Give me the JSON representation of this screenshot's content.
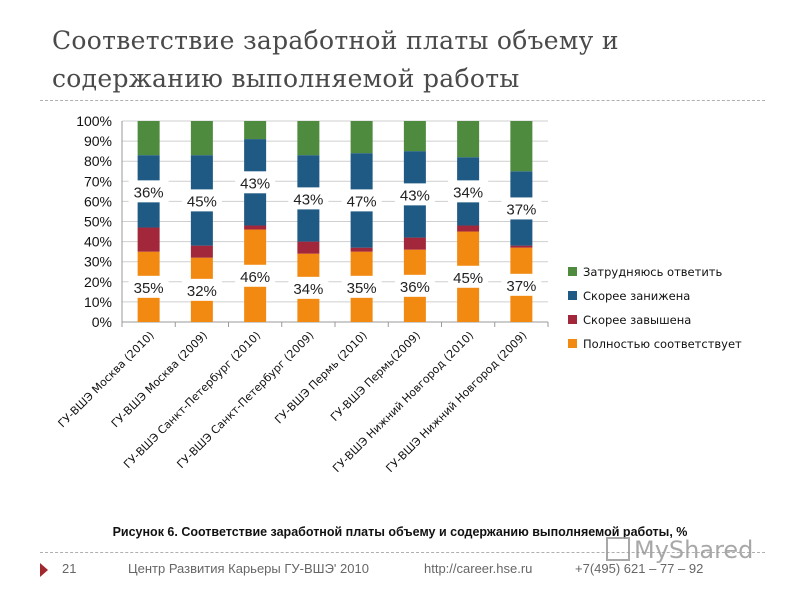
{
  "slide": {
    "title": "Соответствие заработной платы объему и содержанию выполняемой работы",
    "caption": "Рисунок 6. Соответствие заработной платы объему и содержанию выполняемой работы, %",
    "footer": {
      "page_number": "21",
      "organization": "Центр Развития Карьеры ГУ-ВШЭ' 2010",
      "url": "http://career.hse.ru",
      "phone": "+7(495) 621 – 77 – 92"
    },
    "watermark": "MyShared",
    "accent_color": "#a0282e"
  },
  "chart_data": {
    "type": "bar",
    "stacked": true,
    "percent_stacked": true,
    "title": "",
    "xlabel": "",
    "ylabel": "",
    "ylim": [
      0,
      100
    ],
    "yticks": [
      "0%",
      "10%",
      "20%",
      "30%",
      "40%",
      "50%",
      "60%",
      "70%",
      "80%",
      "90%",
      "100%"
    ],
    "grid": true,
    "legend_position": "right",
    "categories": [
      "ГУ-ВШЭ Москва (2010)",
      "ГУ-ВШЭ Москва (2009)",
      "ГУ-ВШЭ Санкт-Петербург (2010)",
      "ГУ-ВШЭ Санкт-Петербург (2009)",
      "ГУ-ВШЭ Пермь (2010)",
      "ГУ-ВШЭ Пермь(2009)",
      "ГУ-ВШЭ Нижний Новгород (2010)",
      "ГУ-ВШЭ Нижний Новгород (2009)"
    ],
    "series": [
      {
        "name": "Полностью соответствует",
        "color": "#f28a12",
        "values": [
          35,
          32,
          46,
          34,
          35,
          36,
          45,
          37
        ],
        "labeled": true
      },
      {
        "name": "Скорее завышена",
        "color": "#a3273a",
        "values": [
          12,
          6,
          2,
          6,
          2,
          6,
          3,
          1
        ],
        "labeled": false
      },
      {
        "name": "Скорее занижена",
        "color": "#1e5a84",
        "values": [
          36,
          45,
          43,
          43,
          47,
          43,
          34,
          37
        ],
        "labeled": true
      },
      {
        "name": "Затрудняюсь ответить",
        "color": "#4e8b3f",
        "values": [
          17,
          17,
          9,
          17,
          16,
          15,
          18,
          25
        ],
        "labeled": false
      }
    ]
  }
}
